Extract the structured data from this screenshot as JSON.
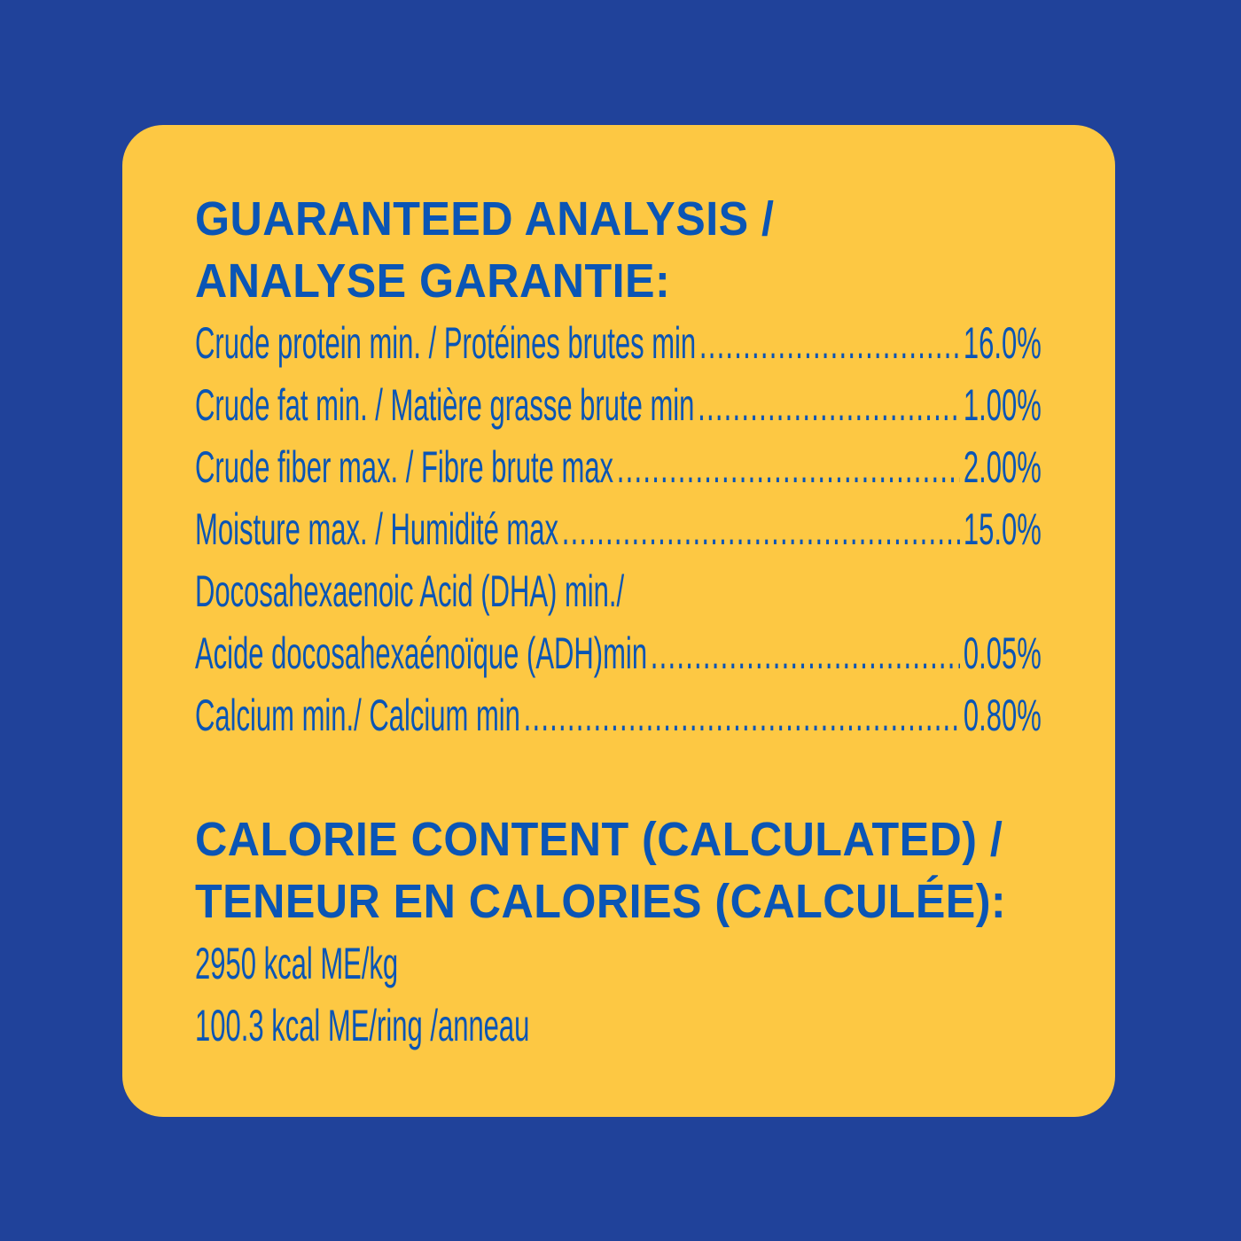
{
  "colors": {
    "background": "#20429a",
    "card": "#fdc843",
    "text": "#0a55b5"
  },
  "analysis": {
    "heading_line1": "GUARANTEED ANALYSIS /",
    "heading_line2": "ANALYSE GARANTIE:",
    "rows": [
      {
        "label": "Crude protein min. / Protéines brutes min",
        "value": "16.0%"
      },
      {
        "label": "Crude fat min. / Matière grasse brute min",
        "value": "1.00%"
      },
      {
        "label": "Crude fiber max. / Fibre brute max",
        "value": "2.00%"
      },
      {
        "label": "Moisture max. / Humidité max",
        "value": "15.0%"
      },
      {
        "label_line1": "Docosahexaenoic Acid (DHA) min./",
        "label": "Acide docosahexaénoïque (ADH)min",
        "value": "0.05%"
      },
      {
        "label": "Calcium min./ Calcium min",
        "value": "0.80%"
      }
    ]
  },
  "calories": {
    "heading_line1": "CALORIE CONTENT (CALCULATED) /",
    "heading_line2": "TENEUR EN CALORIES (CALCULÉE):",
    "lines": [
      "2950 kcal ME/kg",
      "100.3 kcal ME/ring /anneau"
    ]
  }
}
